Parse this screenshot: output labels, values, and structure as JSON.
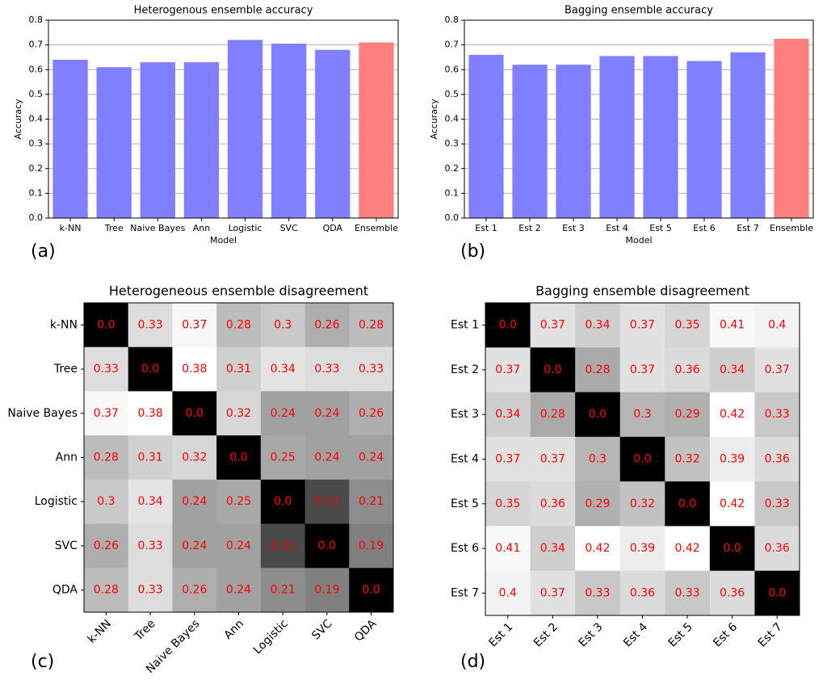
{
  "chart_data": [
    {
      "type": "bar",
      "panel_label": "(a)",
      "title": "Heterogenous ensemble accuracy",
      "x_label": "Model",
      "y_label": "Accuracy",
      "categories": [
        "k-NN",
        "Tree",
        "Naive Bayes",
        "Ann",
        "Logistic",
        "SVC",
        "QDA",
        "Ensemble"
      ],
      "values": [
        0.64,
        0.61,
        0.63,
        0.63,
        0.72,
        0.705,
        0.68,
        0.71
      ],
      "colors": [
        "#7f7fff",
        "#7f7fff",
        "#7f7fff",
        "#7f7fff",
        "#7f7fff",
        "#7f7fff",
        "#7f7fff",
        "#ff7f7f"
      ],
      "ylim": [
        0,
        0.8
      ],
      "yticks": [
        {
          "value": 0,
          "label": "0.0"
        },
        0.1,
        0.2,
        0.3,
        0.4,
        0.5,
        0.6,
        0.7,
        0.8
      ],
      "grid": true
    },
    {
      "type": "bar",
      "panel_label": "(b)",
      "title": "Bagging ensemble accuracy",
      "x_label": "Model",
      "y_label": "Accuracy",
      "categories": [
        "Est 1",
        "Est 2",
        "Est 3",
        "Est 4",
        "Est 5",
        "Est 6",
        "Est 7",
        "Ensemble"
      ],
      "values": [
        0.66,
        0.62,
        0.62,
        0.655,
        0.655,
        0.635,
        0.67,
        0.725
      ],
      "colors": [
        "#7f7fff",
        "#7f7fff",
        "#7f7fff",
        "#7f7fff",
        "#7f7fff",
        "#7f7fff",
        "#7f7fff",
        "#ff7f7f"
      ],
      "ylim": [
        0,
        0.8
      ],
      "yticks": [
        {
          "value": 0,
          "label": "0.0"
        },
        0.1,
        0.2,
        0.3,
        0.4,
        0.5,
        0.6,
        0.7,
        0.8
      ],
      "grid": true
    },
    {
      "type": "heatmap",
      "panel_label": "(c)",
      "title": "Heterogeneous ensemble disagreement",
      "colormap": "gray",
      "label_color": "#ff0000",
      "x": [
        "k-NN",
        "Tree",
        "Naive Bayes",
        "Ann",
        "Logistic",
        "SVC",
        "QDA"
      ],
      "y": [
        "k-NN",
        "Tree",
        "Naive Bayes",
        "Ann",
        "Logistic",
        "SVC",
        "QDA"
      ],
      "values": [
        [
          0,
          0.33,
          0.37,
          0.28,
          0.3,
          0.26,
          0.28
        ],
        [
          0.33,
          0,
          0.38,
          0.31,
          0.34,
          0.33,
          0.33
        ],
        [
          0.37,
          0.38,
          0,
          0.32,
          0.24,
          0.24,
          0.26
        ],
        [
          0.28,
          0.31,
          0.32,
          0,
          0.25,
          0.24,
          0.24
        ],
        [
          0.3,
          0.34,
          0.24,
          0.25,
          0,
          0.11,
          0.21
        ],
        [
          0.26,
          0.33,
          0.24,
          0.24,
          0.11,
          0,
          0.19
        ],
        [
          0.28,
          0.33,
          0.26,
          0.24,
          0.21,
          0.19,
          0
        ]
      ],
      "value_labels": [
        [
          "0.0",
          "0.33",
          "0.37",
          "0.28",
          "0.3",
          "0.26",
          "0.28"
        ],
        [
          "0.33",
          "0.0",
          "0.38",
          "0.31",
          "0.34",
          "0.33",
          "0.33"
        ],
        [
          "0.37",
          "0.38",
          "0.0",
          "0.32",
          "0.24",
          "0.24",
          "0.26"
        ],
        [
          "0.28",
          "0.31",
          "0.32",
          "0.0",
          "0.25",
          "0.24",
          "0.24"
        ],
        [
          "0.3",
          "0.34",
          "0.24",
          "0.25",
          "0.0",
          "0.11",
          "0.21"
        ],
        [
          "0.26",
          "0.33",
          "0.24",
          "0.24",
          "0.11",
          "0.0",
          "0.19"
        ],
        [
          "0.28",
          "0.33",
          "0.26",
          "0.24",
          "0.21",
          "0.19",
          "0.0"
        ]
      ]
    },
    {
      "type": "heatmap",
      "panel_label": "(d)",
      "title": "Bagging ensemble disagreement",
      "colormap": "gray",
      "label_color": "#ff0000",
      "x": [
        "Est 1",
        "Est 2",
        "Est 3",
        "Est 4",
        "Est 5",
        "Est 6",
        "Est 7"
      ],
      "y": [
        "Est 1",
        "Est 2",
        "Est 3",
        "Est 4",
        "Est 5",
        "Est 6",
        "Est 7"
      ],
      "values": [
        [
          0,
          0.37,
          0.34,
          0.37,
          0.35,
          0.41,
          0.4
        ],
        [
          0.37,
          0,
          0.28,
          0.37,
          0.36,
          0.34,
          0.37
        ],
        [
          0.34,
          0.28,
          0,
          0.3,
          0.29,
          0.42,
          0.33
        ],
        [
          0.37,
          0.37,
          0.3,
          0,
          0.32,
          0.39,
          0.36
        ],
        [
          0.35,
          0.36,
          0.29,
          0.32,
          0,
          0.42,
          0.33
        ],
        [
          0.41,
          0.34,
          0.42,
          0.39,
          0.42,
          0,
          0.36
        ],
        [
          0.4,
          0.37,
          0.33,
          0.36,
          0.33,
          0.36,
          0
        ]
      ],
      "value_labels": [
        [
          "0.0",
          "0.37",
          "0.34",
          "0.37",
          "0.35",
          "0.41",
          "0.4"
        ],
        [
          "0.37",
          "0.0",
          "0.28",
          "0.37",
          "0.36",
          "0.34",
          "0.37"
        ],
        [
          "0.34",
          "0.28",
          "0.0",
          "0.3",
          "0.29",
          "0.42",
          "0.33"
        ],
        [
          "0.37",
          "0.37",
          "0.3",
          "0.0",
          "0.32",
          "0.39",
          "0.36"
        ],
        [
          "0.35",
          "0.36",
          "0.29",
          "0.32",
          "0.0",
          "0.42",
          "0.33"
        ],
        [
          "0.41",
          "0.34",
          "0.42",
          "0.39",
          "0.42",
          "0.0",
          "0.36"
        ],
        [
          "0.4",
          "0.37",
          "0.33",
          "0.36",
          "0.33",
          "0.36",
          "0.0"
        ]
      ]
    }
  ]
}
